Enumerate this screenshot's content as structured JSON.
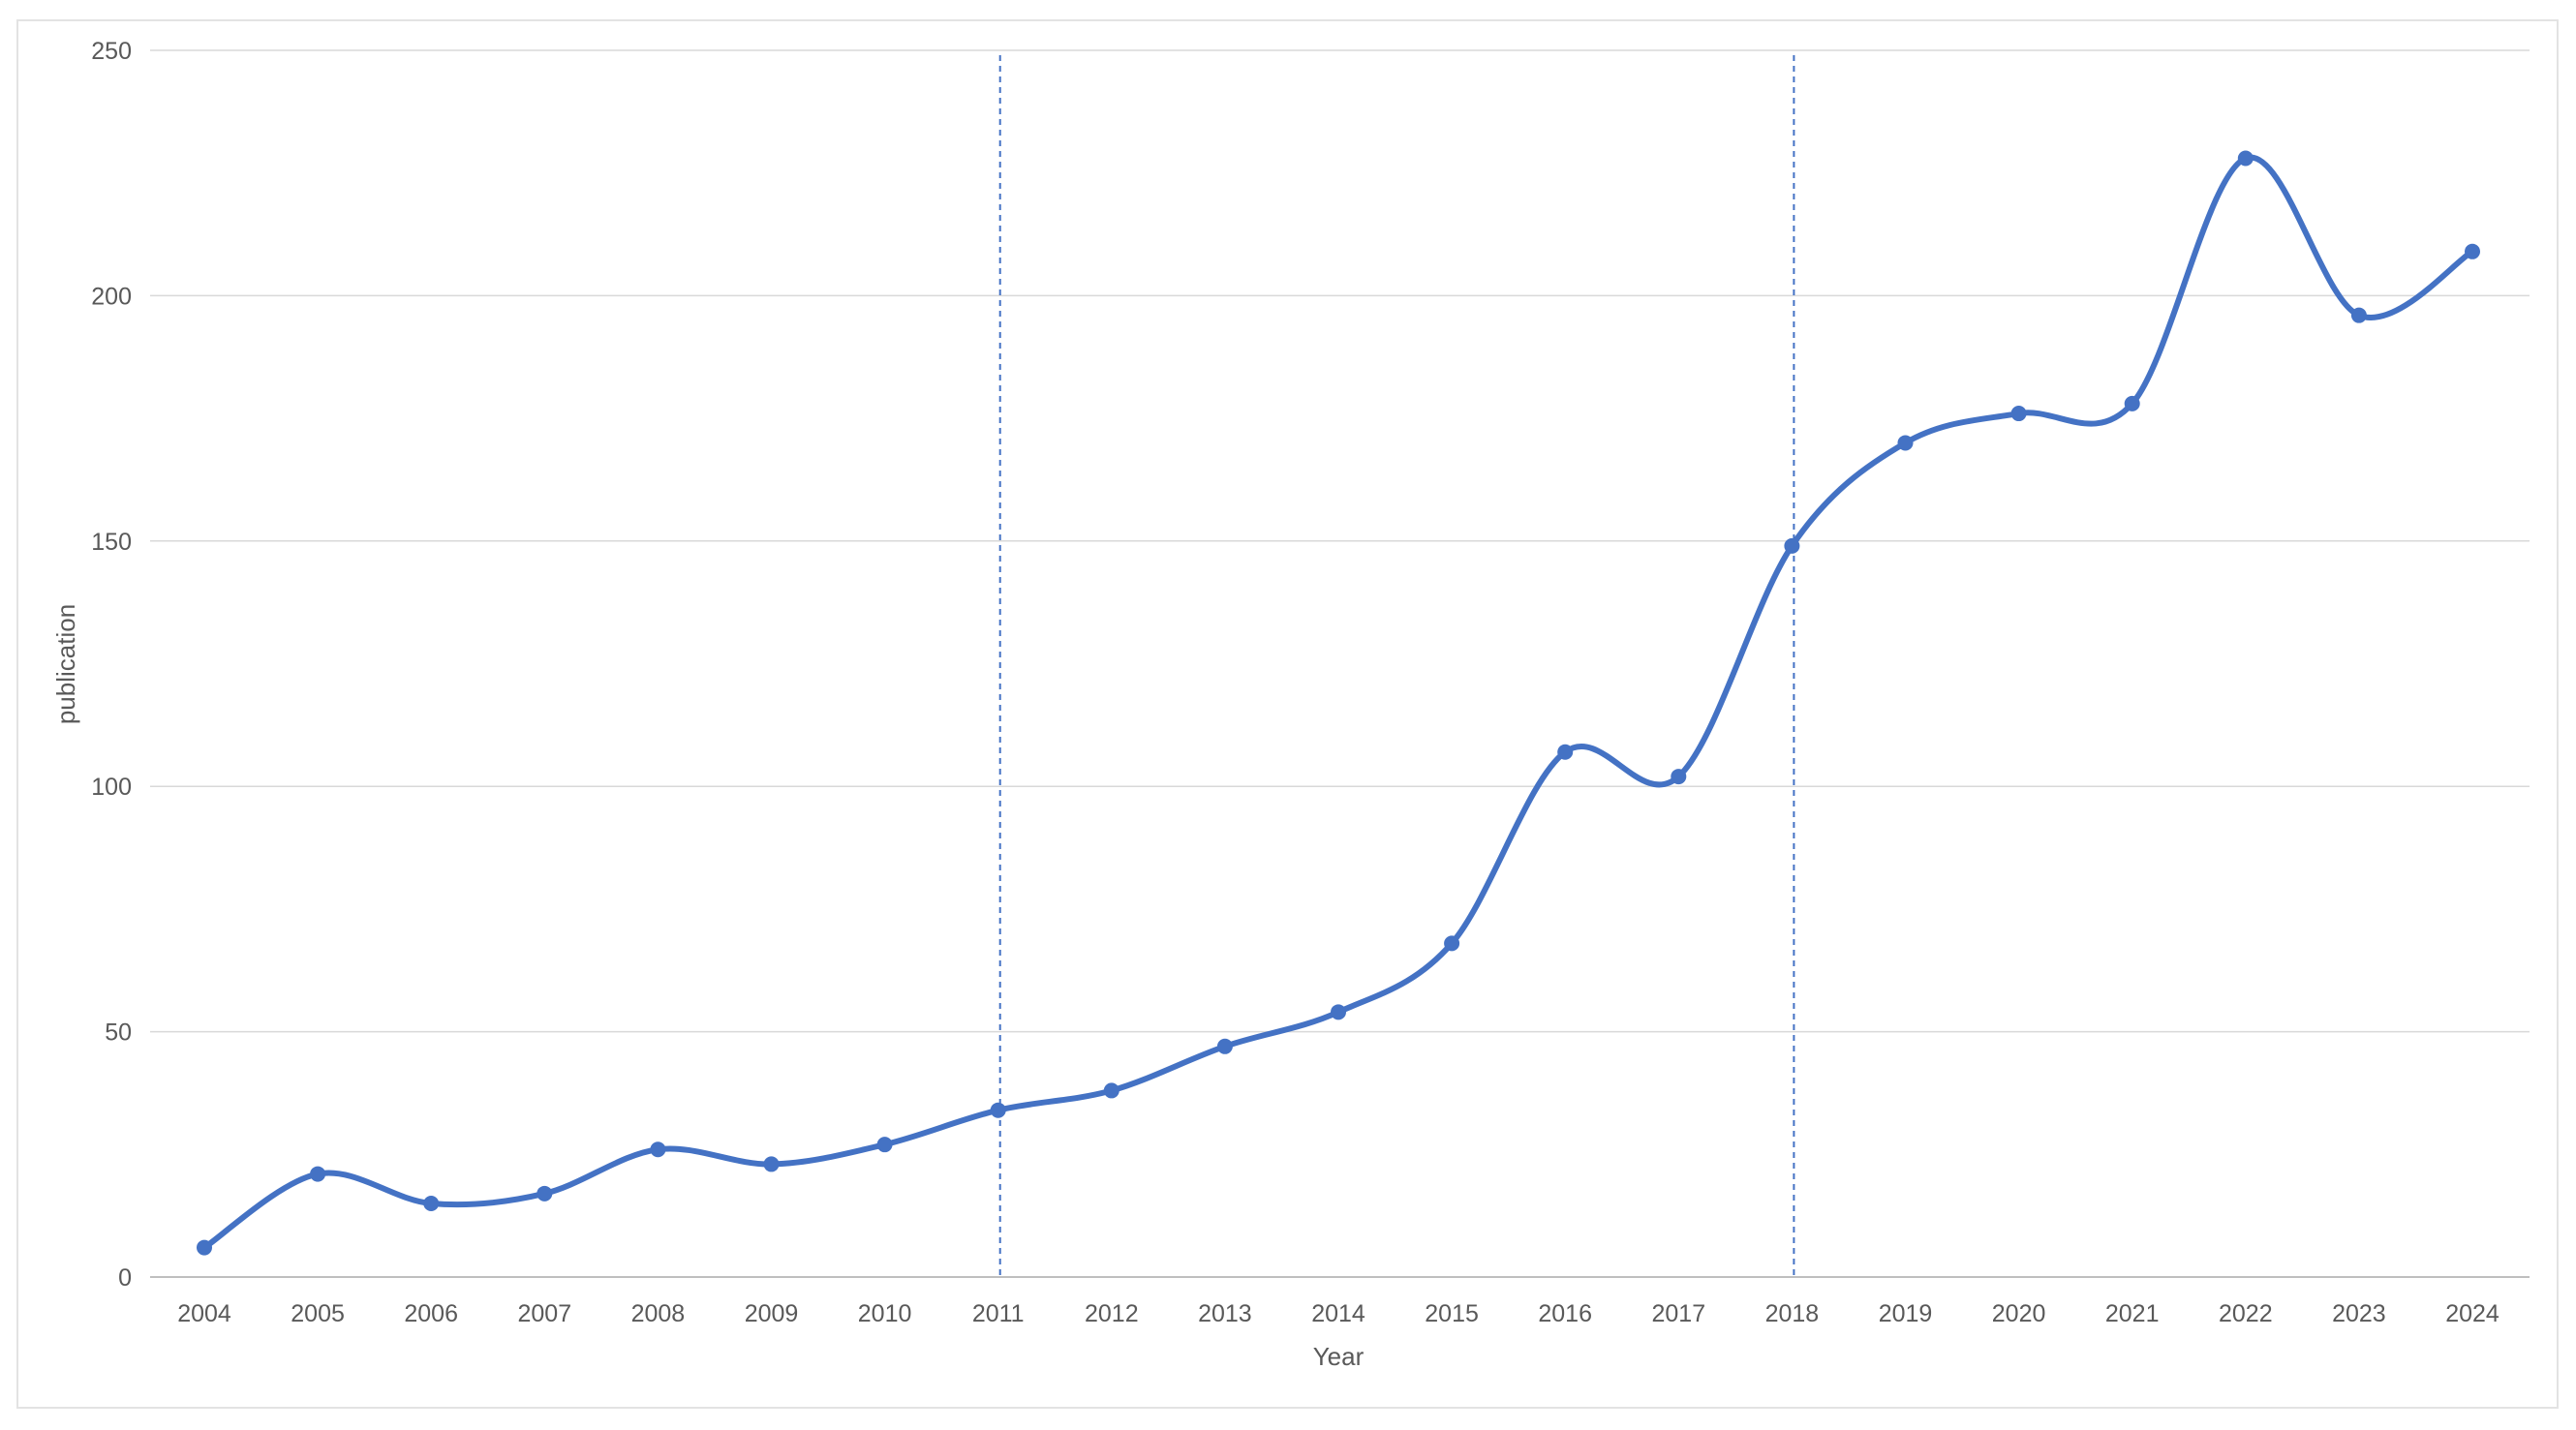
{
  "chart_data": {
    "type": "line",
    "smooth": true,
    "title": "",
    "xlabel": "Year",
    "ylabel": "publication",
    "categories": [
      "2004",
      "2005",
      "2006",
      "2007",
      "2008",
      "2009",
      "2010",
      "2011",
      "2012",
      "2013",
      "2014",
      "2015",
      "2016",
      "2017",
      "2018",
      "2019",
      "2020",
      "2021",
      "2022",
      "2023",
      "2024"
    ],
    "series": [
      {
        "values": [
          6,
          21,
          15,
          17,
          26,
          23,
          27,
          34,
          38,
          47,
          54,
          68,
          107,
          102,
          149,
          170,
          176,
          178,
          228,
          196,
          209
        ]
      }
    ],
    "ylim": [
      0,
      250
    ],
    "yticks": [
      0,
      50,
      100,
      150,
      200,
      250
    ],
    "grid": "horizontal",
    "legend": "none",
    "reference_lines_x": [
      "2011",
      "2018"
    ],
    "colors": {
      "series": "#4472c4",
      "grid": "#d9d9d9",
      "reference": "#4472c4",
      "axis": "#bfbfbf"
    }
  }
}
